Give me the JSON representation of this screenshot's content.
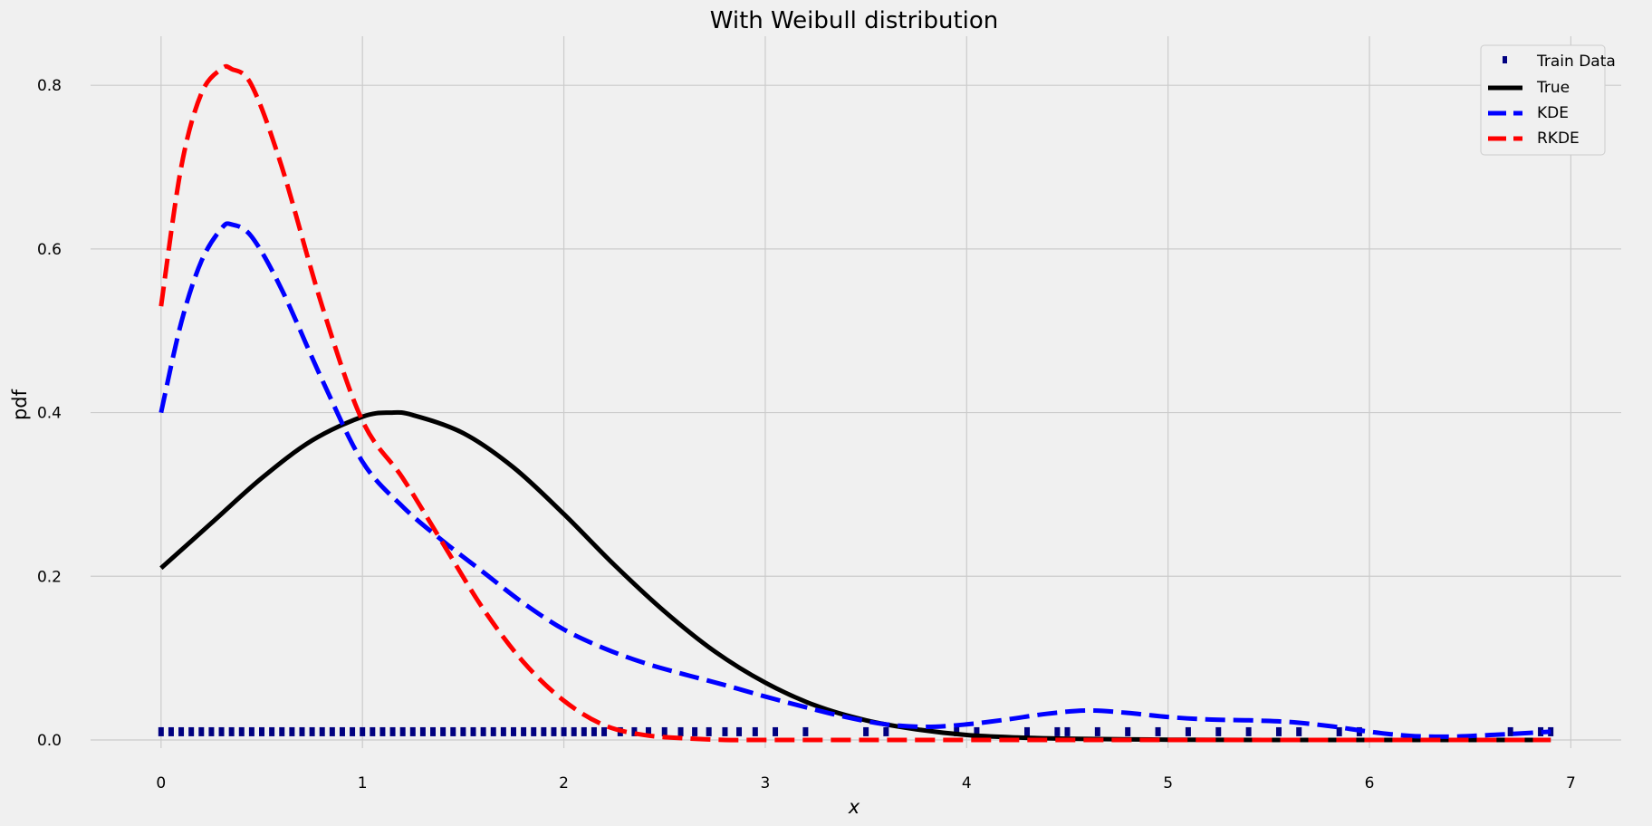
{
  "chart_data": {
    "type": "line",
    "title": "With Weibull distribution",
    "xlabel": "x",
    "ylabel": "pdf",
    "xlim": [
      -0.35,
      7.25
    ],
    "ylim": [
      -0.01,
      0.86
    ],
    "xticks": [
      0,
      1,
      2,
      3,
      4,
      5,
      6,
      7
    ],
    "yticks": [
      0.0,
      0.2,
      0.4,
      0.6,
      0.8
    ],
    "xtick_labels": [
      "0",
      "1",
      "2",
      "3",
      "4",
      "5",
      "6",
      "7"
    ],
    "ytick_labels": [
      "0.0",
      "0.2",
      "0.4",
      "0.6",
      "0.8"
    ],
    "grid": true,
    "legend_position": "top-right",
    "series": [
      {
        "name": "True",
        "style": "solid",
        "color": "#000000",
        "x": [
          0,
          0.25,
          0.5,
          0.75,
          1.0,
          1.14,
          1.25,
          1.5,
          1.75,
          2.0,
          2.25,
          2.5,
          2.75,
          3.0,
          3.25,
          3.5,
          3.75,
          4.0,
          4.25,
          4.5,
          5.0,
          5.5,
          6.0,
          6.5,
          6.9
        ],
        "y": [
          0.21,
          0.265,
          0.32,
          0.366,
          0.395,
          0.4,
          0.397,
          0.375,
          0.333,
          0.276,
          0.214,
          0.157,
          0.108,
          0.07,
          0.042,
          0.024,
          0.013,
          0.006,
          0.003,
          0.0015,
          0.0003,
          0.0,
          0.0,
          0.0,
          0.0
        ]
      },
      {
        "name": "KDE",
        "style": "dashed",
        "color": "#0000ff",
        "x": [
          0,
          0.1,
          0.2,
          0.3,
          0.35,
          0.45,
          0.6,
          0.8,
          1.0,
          1.2,
          1.4,
          1.6,
          1.8,
          2.0,
          2.2,
          2.4,
          2.6,
          2.8,
          3.0,
          3.2,
          3.4,
          3.6,
          3.8,
          4.0,
          4.2,
          4.4,
          4.6,
          4.8,
          5.0,
          5.2,
          5.4,
          5.6,
          5.8,
          6.0,
          6.2,
          6.4,
          6.6,
          6.9
        ],
        "y": [
          0.4,
          0.51,
          0.585,
          0.625,
          0.63,
          0.615,
          0.55,
          0.44,
          0.34,
          0.285,
          0.243,
          0.205,
          0.167,
          0.135,
          0.112,
          0.094,
          0.08,
          0.067,
          0.053,
          0.04,
          0.028,
          0.019,
          0.016,
          0.019,
          0.025,
          0.032,
          0.036,
          0.033,
          0.028,
          0.025,
          0.024,
          0.022,
          0.017,
          0.01,
          0.005,
          0.004,
          0.006,
          0.01
        ]
      },
      {
        "name": "RKDE",
        "style": "dashed",
        "color": "#ff0000",
        "x": [
          0,
          0.1,
          0.2,
          0.3,
          0.35,
          0.45,
          0.6,
          0.8,
          1.0,
          1.2,
          1.4,
          1.6,
          1.8,
          2.0,
          2.2,
          2.4,
          2.6,
          2.8,
          3.0,
          3.5,
          4.0,
          5.0,
          6.0,
          6.9
        ],
        "y": [
          0.53,
          0.7,
          0.79,
          0.82,
          0.82,
          0.8,
          0.7,
          0.53,
          0.39,
          0.32,
          0.24,
          0.16,
          0.095,
          0.048,
          0.018,
          0.006,
          0.002,
          0.0,
          0.0,
          0.0,
          0.0,
          0.0,
          0.0,
          0.0
        ]
      }
    ],
    "train_data": {
      "name": "Train Data",
      "marker": "tick",
      "color": "#000080",
      "y": 0.01,
      "x": [
        0.0,
        0.05,
        0.1,
        0.15,
        0.2,
        0.25,
        0.3,
        0.35,
        0.4,
        0.45,
        0.5,
        0.55,
        0.6,
        0.65,
        0.7,
        0.75,
        0.8,
        0.85,
        0.9,
        0.95,
        1.0,
        1.05,
        1.1,
        1.15,
        1.2,
        1.25,
        1.3,
        1.35,
        1.4,
        1.45,
        1.5,
        1.55,
        1.6,
        1.65,
        1.7,
        1.75,
        1.8,
        1.85,
        1.9,
        1.95,
        2.0,
        2.05,
        2.1,
        2.15,
        2.2,
        2.28,
        2.35,
        2.42,
        2.5,
        2.58,
        2.65,
        2.72,
        2.8,
        2.87,
        2.95,
        3.05,
        3.2,
        3.5,
        3.6,
        3.95,
        4.05,
        4.3,
        4.45,
        4.5,
        4.65,
        4.8,
        4.95,
        5.1,
        5.25,
        5.4,
        5.55,
        5.65,
        5.85,
        5.95,
        6.7,
        6.85,
        6.9
      ]
    }
  }
}
